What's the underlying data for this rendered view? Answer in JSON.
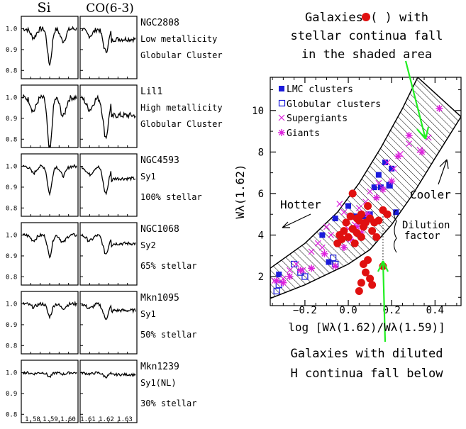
{
  "chart_data": [
    {
      "type": "line",
      "column_headers": [
        "Si",
        "CO(6-3)"
      ],
      "x_ticks_left": [
        "1.58",
        "1.59",
        "1.60"
      ],
      "x_ticks_right": [
        "1.61",
        "1.62",
        "1.63"
      ],
      "y_ticks": [
        "1.0",
        "0.9",
        "0.8"
      ],
      "ylim": [
        0.76,
        1.06
      ],
      "panels": [
        {
          "name": "NGC2808",
          "labels": [
            "NGC2808",
            "Low metallicity",
            "Globular Cluster"
          ],
          "si_depth": 0.17,
          "co_depth": 0.11,
          "noise": 0.012
        },
        {
          "name": "Lil1",
          "labels": [
            "Lil1",
            "High metallicity",
            "Globular Cluster"
          ],
          "si_depth": 0.26,
          "co_depth": 0.19,
          "noise": 0.014
        },
        {
          "name": "NGC4593",
          "labels": [
            "NGC4593",
            "Sy1",
            "100% stellar"
          ],
          "si_depth": 0.13,
          "co_depth": 0.13,
          "noise": 0.008
        },
        {
          "name": "NGC1068",
          "labels": [
            "NGC1068",
            "Sy2",
            "65% stellar"
          ],
          "si_depth": 0.1,
          "co_depth": 0.09,
          "noise": 0.008
        },
        {
          "name": "Mkn1095",
          "labels": [
            "Mkn1095",
            "Sy1",
            "50% stellar"
          ],
          "si_depth": 0.06,
          "co_depth": 0.07,
          "noise": 0.008
        },
        {
          "name": "Mkn1239",
          "labels": [
            "Mkn1239",
            "Sy1(NL)",
            "30% stellar"
          ],
          "si_depth": 0.02,
          "co_depth": 0.02,
          "noise": 0.006
        }
      ]
    },
    {
      "type": "scatter",
      "xlabel": "log [Wλ(1.62)/Wλ(1.59)]",
      "ylabel": "Wλ(1.62)",
      "xlim": [
        -0.36,
        0.52
      ],
      "ylim": [
        0.6,
        11.6
      ],
      "x_ticks": [
        -0.2,
        0.0,
        0.2,
        0.4
      ],
      "x_tick_labels": [
        "−0.2",
        "0.0",
        "0.2",
        "0.4"
      ],
      "y_ticks": [
        2,
        4,
        6,
        8,
        10
      ],
      "legend_position": "top-left",
      "shaded_band": {
        "upper": [
          [
            -0.36,
            2.4
          ],
          [
            -0.2,
            3.6
          ],
          [
            -0.05,
            5.1
          ],
          [
            0.05,
            6.5
          ],
          [
            0.15,
            8.2
          ],
          [
            0.25,
            10.1
          ],
          [
            0.32,
            11.6
          ]
        ],
        "lower": [
          [
            -0.36,
            0.95
          ],
          [
            -0.2,
            1.6
          ],
          [
            0.0,
            2.6
          ],
          [
            0.1,
            3.3
          ],
          [
            0.2,
            4.5
          ],
          [
            0.3,
            6.0
          ],
          [
            0.4,
            7.7
          ],
          [
            0.52,
            9.7
          ]
        ]
      },
      "series": [
        {
          "name": "LMC clusters",
          "marker": "filled-square",
          "color": "#1a1adb",
          "points": [
            [
              -0.32,
              2.1
            ],
            [
              -0.12,
              4.0
            ],
            [
              -0.09,
              2.7
            ],
            [
              -0.06,
              4.8
            ],
            [
              0.0,
              5.4
            ],
            [
              0.03,
              4.9
            ],
            [
              0.07,
              4.9
            ],
            [
              0.1,
              5.0
            ],
            [
              0.12,
              6.3
            ],
            [
              0.14,
              6.9
            ],
            [
              0.15,
              6.3
            ],
            [
              0.17,
              7.5
            ],
            [
              0.19,
              6.4
            ],
            [
              0.2,
              7.2
            ],
            [
              0.22,
              5.1
            ]
          ]
        },
        {
          "name": "Globular clusters",
          "marker": "open-square",
          "color": "#1a1adb",
          "points": [
            [
              -0.33,
              1.3
            ],
            [
              -0.32,
              1.6
            ],
            [
              -0.25,
              2.6
            ],
            [
              -0.22,
              2.2
            ],
            [
              -0.2,
              2.0
            ],
            [
              -0.07,
              2.9
            ],
            [
              -0.06,
              2.6
            ],
            [
              0.19,
              6.4
            ]
          ]
        },
        {
          "name": "Supergiants",
          "marker": "cross",
          "color": "#dd22dd",
          "points": [
            [
              -0.34,
              1.8
            ],
            [
              -0.3,
              1.9
            ],
            [
              -0.27,
              2.3
            ],
            [
              -0.24,
              2.6
            ],
            [
              -0.21,
              2.3
            ],
            [
              -0.17,
              3.2
            ],
            [
              -0.14,
              3.6
            ],
            [
              -0.12,
              3.4
            ],
            [
              -0.1,
              4.4
            ],
            [
              -0.08,
              4.0
            ],
            [
              -0.04,
              5.5
            ],
            [
              -0.02,
              5.1
            ],
            [
              0.0,
              4.3
            ],
            [
              0.03,
              4.5
            ],
            [
              0.05,
              5.3
            ],
            [
              0.08,
              5.6
            ],
            [
              0.1,
              6.1
            ],
            [
              0.14,
              6.5
            ],
            [
              0.18,
              7.5
            ],
            [
              0.21,
              7.2
            ],
            [
              0.24,
              7.9
            ],
            [
              0.28,
              8.4
            ],
            [
              0.33,
              8.1
            ],
            [
              0.37,
              8.7
            ]
          ]
        },
        {
          "name": "Giants",
          "marker": "asterisk",
          "color": "#dd22dd",
          "points": [
            [
              -0.33,
              1.8
            ],
            [
              -0.3,
              1.7
            ],
            [
              -0.27,
              2.0
            ],
            [
              -0.22,
              2.3
            ],
            [
              -0.17,
              2.4
            ],
            [
              -0.11,
              3.1
            ],
            [
              -0.06,
              2.5
            ],
            [
              -0.02,
              3.4
            ],
            [
              0.01,
              3.8
            ],
            [
              0.04,
              4.4
            ],
            [
              0.06,
              4.1
            ],
            [
              0.09,
              5.0
            ],
            [
              0.13,
              5.8
            ],
            [
              0.16,
              6.2
            ],
            [
              0.2,
              6.6
            ],
            [
              0.23,
              7.8
            ],
            [
              0.28,
              8.8
            ],
            [
              0.34,
              8.0
            ],
            [
              0.42,
              10.1
            ]
          ]
        },
        {
          "name": "Galaxies",
          "marker": "filled-circle",
          "color": "#e01010",
          "points": [
            [
              -0.05,
              3.6
            ],
            [
              -0.04,
              4.0
            ],
            [
              -0.03,
              3.8
            ],
            [
              -0.02,
              4.2
            ],
            [
              -0.01,
              4.6
            ],
            [
              0.0,
              3.9
            ],
            [
              0.01,
              4.9
            ],
            [
              0.02,
              4.3
            ],
            [
              0.03,
              3.6
            ],
            [
              0.04,
              4.1
            ],
            [
              0.05,
              4.7
            ],
            [
              0.06,
              3.9
            ],
            [
              0.07,
              4.4
            ],
            [
              0.08,
              4.6
            ],
            [
              0.09,
              5.4
            ],
            [
              0.1,
              4.8
            ],
            [
              0.11,
              4.2
            ],
            [
              0.12,
              4.6
            ],
            [
              0.13,
              3.9
            ],
            [
              0.14,
              4.7
            ],
            [
              0.16,
              5.2
            ],
            [
              0.18,
              5.0
            ],
            [
              0.02,
              6.0
            ],
            [
              0.04,
              4.8
            ],
            [
              0.06,
              5.0
            ],
            [
              0.07,
              2.6
            ],
            [
              0.08,
              2.2
            ],
            [
              0.09,
              2.8
            ],
            [
              0.1,
              1.9
            ],
            [
              0.06,
              1.7
            ],
            [
              0.11,
              1.6
            ],
            [
              0.05,
              1.3
            ],
            [
              0.16,
              2.5
            ]
          ]
        }
      ],
      "annotations": {
        "top_text": [
          "Galaxies (   ) with",
          "stellar continua fall",
          "in the shaded area"
        ],
        "bottom_text": [
          "Galaxies with diluted",
          "H continua fall below"
        ],
        "hotter": "Hotter",
        "cooler": "Cooler",
        "dilution": [
          "Dilution",
          "factor"
        ]
      }
    }
  ]
}
